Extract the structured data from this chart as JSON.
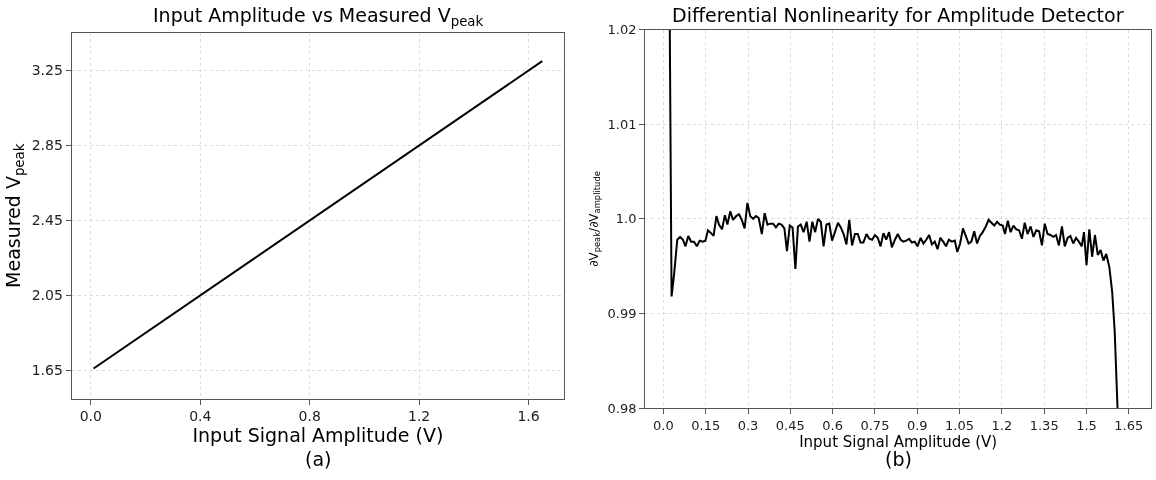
{
  "chart_data": [
    {
      "type": "line",
      "title": "Input Amplitude vs Measured V$_{peak}$",
      "xlabel": "Input Signal Amplitude (V)",
      "ylabel": "Measured V$_{peak}$",
      "annotations": [
        "(a)"
      ],
      "series": [
        {
          "color": "#000000",
          "x": [
            0.01,
            1.65
          ],
          "values": [
            1.66,
            3.3
          ]
        }
      ],
      "xlim": [
        -0.07,
        1.73
      ],
      "ylim": [
        1.5,
        3.45
      ],
      "xticks": [
        {
          "value": 0,
          "label": "0.0"
        },
        0.4,
        0.8,
        1.2,
        1.6
      ],
      "yticks": [
        1.65,
        2.05,
        2.45,
        2.85,
        3.25
      ],
      "grid": true,
      "marker": "none",
      "line_style": "solid"
    },
    {
      "type": "line",
      "title": "Differential Nonlinearity for Amplitude Detector",
      "xlabel": "Input Signal Amplitude (V)",
      "ylabel": "∂V$_{peak}$/∂V$_{amplitude}$",
      "annotations": [
        "(b)"
      ],
      "series": [
        {
          "color": "#000000",
          "x": [
            0.0227,
            0.029,
            0.0379,
            0.0492,
            0.0593,
            0.0694,
            0.0783,
            0.0884,
            0.0985,
            0.1086,
            0.1187,
            0.1288,
            0.1389,
            0.149,
            0.158,
            0.169,
            0.178,
            0.188,
            0.197,
            0.208,
            0.218,
            0.227,
            0.237,
            0.247,
            0.258,
            0.268,
            0.278,
            0.288,
            0.298,
            0.308,
            0.318,
            0.328,
            0.338,
            0.349,
            0.359,
            0.369,
            0.379,
            0.389,
            0.399,
            0.409,
            0.419,
            0.429,
            0.438,
            0.448,
            0.458,
            0.468,
            0.477,
            0.487,
            0.497,
            0.508,
            0.518,
            0.528,
            0.538,
            0.548,
            0.558,
            0.568,
            0.578,
            0.588,
            0.598,
            0.608,
            0.619,
            0.629,
            0.639,
            0.649,
            0.659,
            0.669,
            0.679,
            0.689,
            0.699,
            0.709,
            0.72,
            0.73,
            0.74,
            0.75,
            0.76,
            0.77,
            0.78,
            0.79,
            0.8,
            0.81,
            0.821,
            0.831,
            0.841,
            0.851,
            0.861,
            0.871,
            0.881,
            0.891,
            0.901,
            0.912,
            0.922,
            0.932,
            0.942,
            0.952,
            0.962,
            0.972,
            0.982,
            0.992,
            1.002,
            1.012,
            1.023,
            1.033,
            1.042,
            1.052,
            1.062,
            1.072,
            1.082,
            1.092,
            1.102,
            1.112,
            1.122,
            1.132,
            1.143,
            1.153,
            1.163,
            1.173,
            1.183,
            1.193,
            1.203,
            1.211,
            1.221,
            1.231,
            1.241,
            1.251,
            1.261,
            1.271,
            1.281,
            1.291,
            1.302,
            1.312,
            1.322,
            1.332,
            1.342,
            1.352,
            1.362,
            1.372,
            1.382,
            1.392,
            1.402,
            1.413,
            1.423,
            1.433,
            1.443,
            1.453,
            1.463,
            1.473,
            1.483,
            1.491,
            1.5,
            1.51,
            1.52,
            1.53,
            1.54,
            1.55,
            1.56,
            1.57,
            1.581,
            1.591,
            1.6,
            1.606,
            1.61
          ],
          "values": [
            1.02,
            0.9918,
            0.9941,
            0.9978,
            0.9981,
            0.9978,
            0.9971,
            0.9982,
            0.9976,
            0.9976,
            0.9971,
            0.9977,
            0.9976,
            0.9977,
            0.9988,
            0.9985,
            0.9982,
            1.0003,
            0.9994,
            0.9989,
            1.0004,
            0.9994,
            1.0008,
            0.9999,
            1.0003,
            1.0005,
            0.9999,
            0.999,
            1.0017,
            1.0003,
            1.0,
            1.0003,
            1.0001,
            0.9984,
            1.0006,
            0.9994,
            0.9995,
            0.9995,
            0.9991,
            0.9995,
            0.9994,
            0.999,
            0.9966,
            0.9993,
            0.9991,
            0.9947,
            0.9992,
            0.9994,
            0.9986,
            0.9997,
            0.9976,
            0.9997,
            0.9986,
            1.0,
            0.9997,
            0.9971,
            0.9994,
            0.9995,
            0.9977,
            0.9986,
            0.9996,
            0.9991,
            0.9984,
            0.9973,
            0.9999,
            0.9972,
            0.9984,
            0.9984,
            0.9975,
            0.9975,
            0.9984,
            0.9979,
            0.9978,
            0.9983,
            0.998,
            0.9971,
            0.9985,
            0.9978,
            0.9986,
            0.997,
            0.9978,
            0.9984,
            0.9978,
            0.9976,
            0.9977,
            0.9979,
            0.9975,
            0.9976,
            0.9971,
            0.998,
            0.9974,
            0.9978,
            0.9983,
            0.9973,
            0.9976,
            0.9968,
            0.998,
            0.9976,
            0.9971,
            0.9978,
            0.9976,
            0.9977,
            0.9965,
            0.9974,
            0.999,
            0.9982,
            0.9974,
            0.9976,
            0.9987,
            0.9974,
            0.9982,
            0.9986,
            0.9992,
            0.9999,
            0.9996,
            0.9993,
            0.9997,
            0.9994,
            0.9993,
            0.9984,
            0.9998,
            0.9986,
            0.9993,
            0.9989,
            0.9988,
            0.9979,
            0.9996,
            0.9984,
            0.9992,
            0.9981,
            0.9988,
            0.9987,
            0.9972,
            0.9995,
            0.9984,
            0.9983,
            0.9981,
            0.9983,
            0.9972,
            0.9992,
            0.9971,
            0.998,
            0.9982,
            0.9974,
            0.998,
            0.9976,
            0.9971,
            0.9986,
            0.9951,
            0.9989,
            0.996,
            0.9983,
            0.9962,
            0.9967,
            0.9956,
            0.9963,
            0.9949,
            0.9923,
            0.9881,
            0.9832,
            0.98
          ]
        }
      ],
      "xlim": [
        -0.065,
        1.73
      ],
      "ylim": [
        0.98,
        1.02
      ],
      "xticks": [
        {
          "value": 0,
          "label": "0.0"
        },
        0.15,
        0.3,
        0.45,
        0.6,
        0.75,
        0.9,
        1.05,
        1.2,
        1.35,
        1.5,
        1.65
      ],
      "yticks": [
        0.98,
        0.99,
        {
          "value": 1,
          "label": "1.0"
        },
        1.01,
        1.02
      ],
      "grid": true,
      "marker": "none",
      "line_style": "solid"
    }
  ]
}
